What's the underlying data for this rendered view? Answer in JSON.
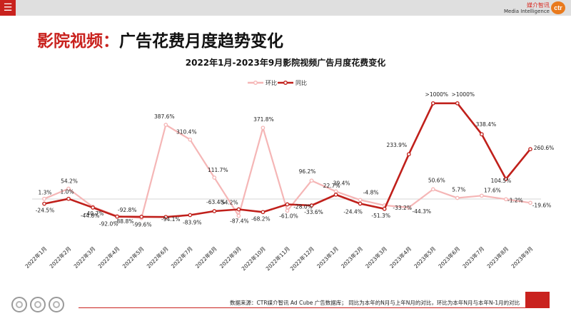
{
  "header": {
    "brand_cn": "媒介智讯",
    "brand_en": "Media Intelligence",
    "logo_text": "ctr"
  },
  "page": {
    "title_prefix": "影院视频：",
    "title_main": "广告花费月度趋势变化"
  },
  "footnote": "数据来源：CTR媒介智讯 Ad Cube 广告数据库； 同比为本年的N月与上年N月的对比，环比为本年N月与本年N-1月的对比",
  "colors": {
    "mom": "#f5b6b6",
    "yoy": "#c0201b",
    "accent": "#c9221e"
  },
  "chart_data": {
    "type": "line",
    "title": "2022年1月-2023年9月影院视频广告月度花费变化",
    "categories": [
      "2022年1月",
      "2022年2月",
      "2022年3月",
      "2022年4月",
      "2022年5月",
      "2022年6月",
      "2022年7月",
      "2022年8月",
      "2022年9月",
      "2022年10月",
      "2022年11月",
      "2022年12月",
      "2023年1月",
      "2023年2月",
      "2023年3月",
      "2023年4月",
      "2023年5月",
      "2023年6月",
      "2023年7月",
      "2023年8月",
      "2023年9月"
    ],
    "series": [
      {
        "name": "环比",
        "color": "#f5b6b6",
        "values": [
          1.3,
          54.2,
          -40.7,
          -88.8,
          -99.6,
          387.6,
          310.4,
          111.7,
          -87.4,
          371.8,
          -61.0,
          96.2,
          39.4,
          -4.8,
          -33.2,
          -44.3,
          50.6,
          5.7,
          17.6,
          -1.2,
          -19.6
        ],
        "labels": [
          "1.3%",
          "54.2%",
          "-40.7%",
          "-88.8%",
          "-99.6%",
          "387.6%",
          "310.4%",
          "111.7%",
          "-87.4%",
          "371.8%",
          "-61.0%",
          "96.2%",
          "39.4%",
          "-4.8%",
          "-33.2%",
          "-44.3%",
          "50.6%",
          "5.7%",
          "17.6%",
          "-1.2%",
          "-19.6%"
        ]
      },
      {
        "name": "同比",
        "color": "#c0201b",
        "values": [
          -24.5,
          1.0,
          -44.8,
          -92.0,
          -92.8,
          -94.1,
          -83.9,
          -63.4,
          -54.2,
          -68.2,
          -28.0,
          -33.6,
          22.7,
          -24.4,
          -51.3,
          233.9,
          1000,
          1000,
          338.4,
          104.5,
          260.6
        ],
        "labels": [
          "-24.5%",
          "1.0%",
          "-44.8%",
          "-92.0%",
          "-92.8%",
          "-94.1%",
          "-83.9%",
          "-63.4%",
          "-54.2%",
          "-68.2%",
          "-28.0%",
          "-33.6%",
          "22.7%",
          "-24.4%",
          "-51.3%",
          "233.9%",
          ">1000%",
          ">1000%",
          "338.4%",
          "104.5%",
          "260.6%"
        ]
      }
    ],
    "legend": "top-center",
    "grid": false
  }
}
